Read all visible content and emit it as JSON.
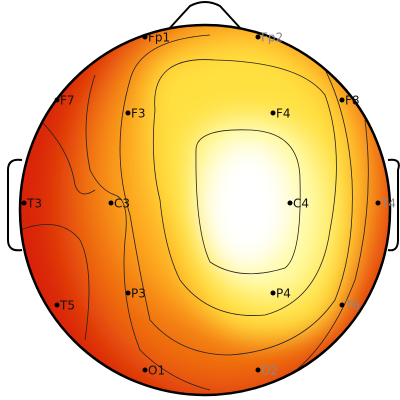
{
  "electrodes": [
    {
      "label": "Fp1"
    },
    {
      "label": "Fp2"
    },
    {
      "label": "F7"
    },
    {
      "label": "F3"
    },
    {
      "label": "F4"
    },
    {
      "label": "F8"
    },
    {
      "label": "T3"
    },
    {
      "label": "C3"
    },
    {
      "label": "C4"
    },
    {
      "label": "T4"
    },
    {
      "label": "T5"
    },
    {
      "label": "P3"
    },
    {
      "label": "P4"
    },
    {
      "label": "T6"
    },
    {
      "label": "O1"
    },
    {
      "label": "O2"
    }
  ]
}
